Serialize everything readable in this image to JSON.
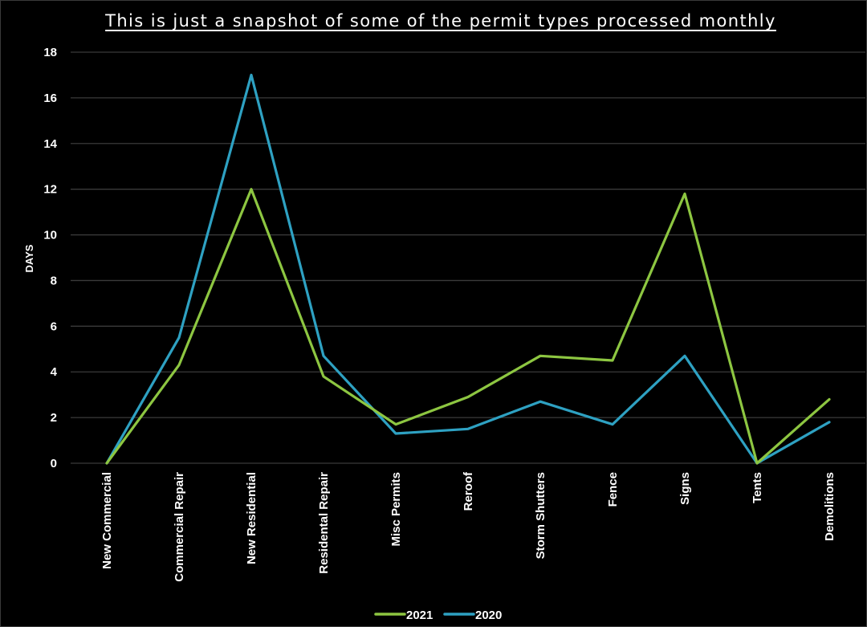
{
  "chart_data": {
    "type": "line",
    "title": "This is just a snapshot of some of the permit types processed monthly",
    "ylabel": "DAYS",
    "xlabel": "",
    "ylim": [
      0,
      18
    ],
    "yticks": [
      0,
      2,
      4,
      6,
      8,
      10,
      12,
      14,
      16,
      18
    ],
    "grid": true,
    "legend_position": "bottom",
    "categories": [
      "New Commercial",
      "Commercial Repair",
      "New Residential",
      "Residental Repair",
      "Misc Permits",
      "Reroof",
      "Storm Shutters",
      "Fence",
      "Signs",
      "Tents",
      "Demolitions"
    ],
    "series": [
      {
        "name": "2021",
        "color": "#8dc641",
        "values": [
          0,
          4.3,
          12,
          3.8,
          1.7,
          2.9,
          4.7,
          4.5,
          11.8,
          0,
          2.8
        ]
      },
      {
        "name": "2020",
        "color": "#2ea1c2",
        "values": [
          0,
          5.5,
          17,
          4.7,
          1.3,
          1.5,
          2.7,
          1.7,
          4.7,
          0,
          1.8
        ]
      }
    ],
    "colors": {
      "background": "#000000",
      "grid": "#3a3a3a",
      "text": "#ffffff"
    }
  }
}
